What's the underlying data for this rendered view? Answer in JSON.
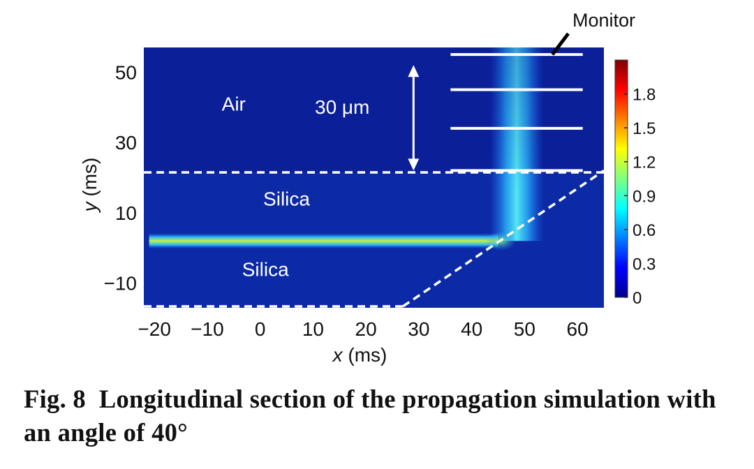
{
  "chart_data": {
    "type": "heatmap",
    "xlabel": {
      "var": "x",
      "unit": "(ms)"
    },
    "ylabel": {
      "var": "y",
      "unit": "(ms)"
    },
    "xlim": [
      -22,
      65
    ],
    "ylim": [
      -17,
      57
    ],
    "x_ticks": [
      -20,
      -10,
      0,
      10,
      20,
      30,
      40,
      50,
      60
    ],
    "x_tick_labels": [
      "−20",
      "−10",
      "0",
      "10",
      "20",
      "30",
      "40",
      "50",
      "60"
    ],
    "y_ticks": [
      50,
      30,
      10,
      -10
    ],
    "y_tick_labels": [
      "50",
      "30",
      "10",
      "−10"
    ],
    "colorbar": {
      "min": 0,
      "max": 2.1,
      "ticks": [
        1.8,
        1.5,
        1.2,
        0.9,
        0.6,
        0.3,
        0
      ],
      "tick_labels": [
        "1.8",
        "1.5",
        "1.2",
        "0.9",
        "0.6",
        "0.3",
        "0"
      ]
    },
    "regions": [
      {
        "label": "Air",
        "x": -5,
        "y": 41
      },
      {
        "label": "Silica",
        "x": 5,
        "y": 14
      },
      {
        "label": "Silica",
        "x": 1,
        "y": -6
      }
    ],
    "interfaces": {
      "air_silica_y": 21.5,
      "bottom_boundary_y": -17,
      "bottom_boundary_x_end": 27,
      "slanted_face": [
        [
          27,
          -17
        ],
        [
          65,
          22
        ]
      ]
    },
    "beams": [
      {
        "name": "waveguide",
        "x_start": -21,
        "x_end": 45,
        "y": 2,
        "peak": 1.2
      },
      {
        "name": "reflected",
        "x": 48.5,
        "y_start": 2,
        "y_end": 57,
        "peak": 0.75
      }
    ],
    "monitors": {
      "x_start": 36,
      "x_end": 61,
      "y": [
        55,
        45,
        34,
        22
      ]
    },
    "annotations": {
      "distance_label": "30 μm",
      "distance_arrow": {
        "x": 29,
        "y_from": 22,
        "y_to": 52
      },
      "monitor_label": "Monitor"
    }
  },
  "caption": {
    "fig_number": "Fig. 8",
    "text": "Longitudinal section of the propagation simulation with an angle of 40°"
  }
}
